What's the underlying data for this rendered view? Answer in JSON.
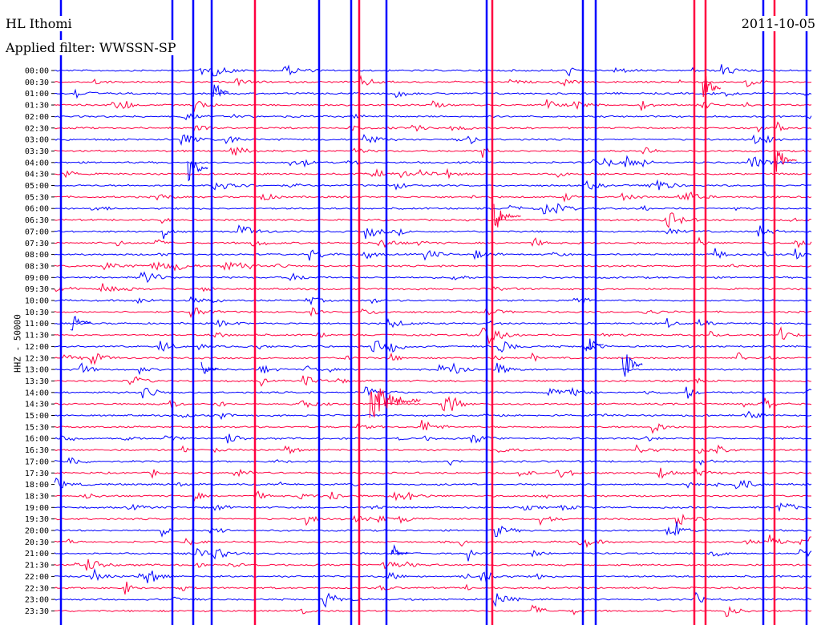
{
  "header": {
    "station": "HL Ithomi",
    "filter": "Applied filter: WWSSN-SP",
    "date": "2011-10-05"
  },
  "chart_data": {
    "type": "line",
    "title": "HL Ithomi",
    "subtitle": "Applied filter: WWSSN-SP",
    "ylabel": "HHZ - 50000",
    "xlabel": "",
    "grid": false,
    "row_labels": [
      "00:00",
      "00:30",
      "01:00",
      "01:30",
      "02:00",
      "02:30",
      "03:00",
      "03:30",
      "04:00",
      "04:30",
      "05:00",
      "05:30",
      "06:00",
      "06:30",
      "07:00",
      "07:30",
      "08:00",
      "08:30",
      "09:00",
      "09:30",
      "10:00",
      "10:30",
      "11:00",
      "11:30",
      "12:00",
      "12:30",
      "13:00",
      "13:30",
      "14:00",
      "14:30",
      "15:00",
      "15:30",
      "16:00",
      "16:30",
      "17:00",
      "17:30",
      "18:00",
      "18:30",
      "19:00",
      "19:30",
      "20:00",
      "20:30",
      "21:00",
      "21:30",
      "22:00",
      "22:30",
      "23:00",
      "23:30"
    ],
    "colors": [
      "#0000ff",
      "#ff0040"
    ],
    "series": [
      {
        "values": []
      }
    ]
  }
}
